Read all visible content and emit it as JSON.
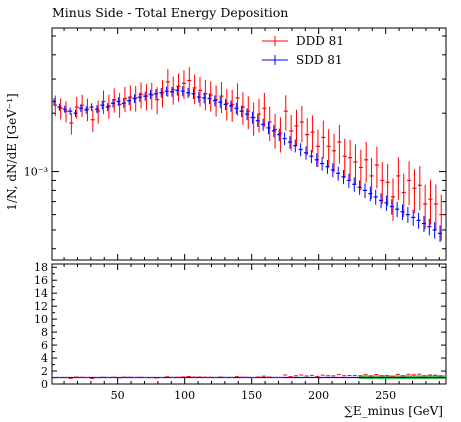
{
  "chart_data": {
    "type": "scatter",
    "title": "Minus Side - Total Energy Deposition",
    "ylabel": "1/N, dN/dE [GeV⁻¹]",
    "xlabel": "∑E_minus [GeV]",
    "x_ticks": [
      "50",
      "100",
      "150",
      "200",
      "250"
    ],
    "y_ticks": [
      "10⁻³"
    ],
    "ratio_ticks": [
      "0",
      "2",
      "4",
      "6",
      "8",
      "10",
      "12",
      "14",
      "16",
      "18"
    ],
    "xlim": [
      1,
      295
    ],
    "log_y": true,
    "ylim": [
      0.00035,
      0.0055
    ],
    "ratio_ylim": [
      0,
      18.5
    ],
    "legend_position": "top-right",
    "series": [
      {
        "name": "DDD 81",
        "color": "#ff0000",
        "x": [
          3,
          7,
          11,
          15,
          19,
          23,
          27,
          31,
          35,
          39,
          43,
          47,
          51,
          55,
          59,
          63,
          67,
          71,
          75,
          79,
          83,
          87,
          91,
          95,
          99,
          103,
          107,
          111,
          115,
          119,
          123,
          127,
          131,
          135,
          139,
          143,
          147,
          151,
          155,
          159,
          163,
          167,
          171,
          175,
          179,
          183,
          187,
          191,
          195,
          199,
          203,
          207,
          211,
          215,
          219,
          223,
          227,
          231,
          235,
          239,
          243,
          247,
          251,
          255,
          259,
          263,
          267,
          271,
          275,
          279,
          283,
          287,
          291
        ],
        "y": [
          0.0022,
          0.00212,
          0.00205,
          0.00178,
          0.00215,
          0.0022,
          0.0021,
          0.00185,
          0.00205,
          0.0023,
          0.00218,
          0.00235,
          0.00222,
          0.00238,
          0.00242,
          0.0024,
          0.0025,
          0.00245,
          0.00248,
          0.00235,
          0.00255,
          0.0029,
          0.00265,
          0.00275,
          0.00285,
          0.00295,
          0.0027,
          0.00262,
          0.00252,
          0.00248,
          0.00235,
          0.00245,
          0.00225,
          0.00222,
          0.0024,
          0.00215,
          0.00205,
          0.0019,
          0.00198,
          0.00212,
          0.0018,
          0.00165,
          0.00158,
          0.00205,
          0.00162,
          0.00172,
          0.0018,
          0.00155,
          0.0016,
          0.00135,
          0.0015,
          0.00135,
          0.00128,
          0.00142,
          0.0012,
          0.00118,
          0.00112,
          0.00105,
          0.00115,
          0.00095,
          0.00108,
          0.0009,
          0.00088,
          0.00074,
          0.00095,
          0.00078,
          0.0009,
          0.00082,
          0.00085,
          0.00068,
          0.00072,
          0.00068,
          0.0006
        ]
      },
      {
        "name": "SDD 81",
        "color": "#0000ff",
        "x": [
          3,
          7,
          11,
          15,
          19,
          23,
          27,
          31,
          35,
          39,
          43,
          47,
          51,
          55,
          59,
          63,
          67,
          71,
          75,
          79,
          83,
          87,
          91,
          95,
          99,
          103,
          107,
          111,
          115,
          119,
          123,
          127,
          131,
          135,
          139,
          143,
          147,
          151,
          155,
          159,
          163,
          167,
          171,
          175,
          179,
          183,
          187,
          191,
          195,
          199,
          203,
          207,
          211,
          215,
          219,
          223,
          227,
          231,
          235,
          239,
          243,
          247,
          251,
          255,
          259,
          263,
          267,
          271,
          275,
          279,
          283,
          287,
          291
        ],
        "y": [
          0.0023,
          0.00215,
          0.0021,
          0.00205,
          0.002,
          0.00212,
          0.00208,
          0.00215,
          0.0021,
          0.0022,
          0.00215,
          0.00225,
          0.0023,
          0.00225,
          0.00232,
          0.00238,
          0.00242,
          0.00245,
          0.0025,
          0.00252,
          0.00255,
          0.0026,
          0.00258,
          0.00262,
          0.0026,
          0.00255,
          0.00252,
          0.00242,
          0.0024,
          0.00238,
          0.00232,
          0.00228,
          0.00222,
          0.00218,
          0.00212,
          0.00205,
          0.00198,
          0.0019,
          0.00183,
          0.00175,
          0.00168,
          0.00162,
          0.00155,
          0.00148,
          0.00142,
          0.00136,
          0.0013,
          0.00125,
          0.0012,
          0.00115,
          0.0011,
          0.00106,
          0.00102,
          0.00098,
          0.00094,
          0.0009,
          0.00086,
          0.00083,
          0.0008,
          0.00077,
          0.00074,
          0.00071,
          0.00069,
          0.00066,
          0.00064,
          0.00062,
          0.0006,
          0.00058,
          0.00056,
          0.00054,
          0.00052,
          0.0005,
          0.00048
        ]
      }
    ]
  }
}
